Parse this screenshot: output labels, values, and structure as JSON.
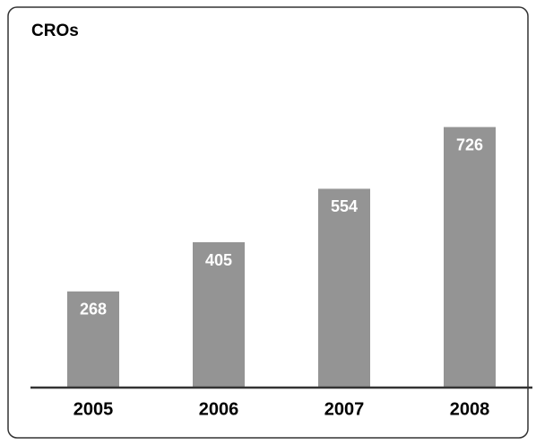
{
  "chart_data": {
    "type": "bar",
    "title": "CROs",
    "categories": [
      "2005",
      "2006",
      "2007",
      "2008"
    ],
    "values": [
      268,
      405,
      554,
      726
    ],
    "color": "#949494"
  }
}
